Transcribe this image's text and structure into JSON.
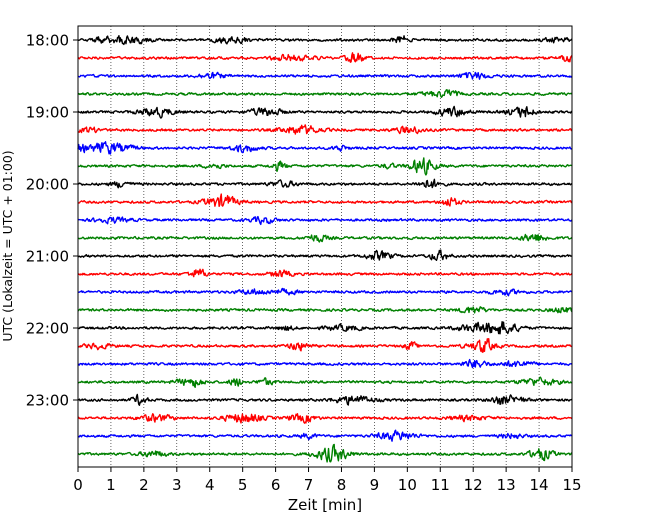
{
  "chart_data": {
    "type": "line",
    "xlabel": "Zeit  [min]",
    "ylabel": "UTC (Lokalzeit = UTC + 01:00)",
    "xlim": [
      0,
      15
    ],
    "x_ticks": [
      "0",
      "1",
      "2",
      "3",
      "4",
      "5",
      "6",
      "7",
      "8",
      "9",
      "10",
      "11",
      "12",
      "13",
      "14",
      "15"
    ],
    "y_tick_labels": [
      "18:00",
      "19:00",
      "20:00",
      "21:00",
      "22:00",
      "23:00"
    ],
    "grid": "vertical-dotted",
    "trace_interval_min": 15,
    "trace_start": "18:00",
    "trace_end": "23:45",
    "trace_count": 24,
    "trace_colors": [
      "#000000",
      "#ff0000",
      "#0000ff",
      "#008000"
    ]
  }
}
